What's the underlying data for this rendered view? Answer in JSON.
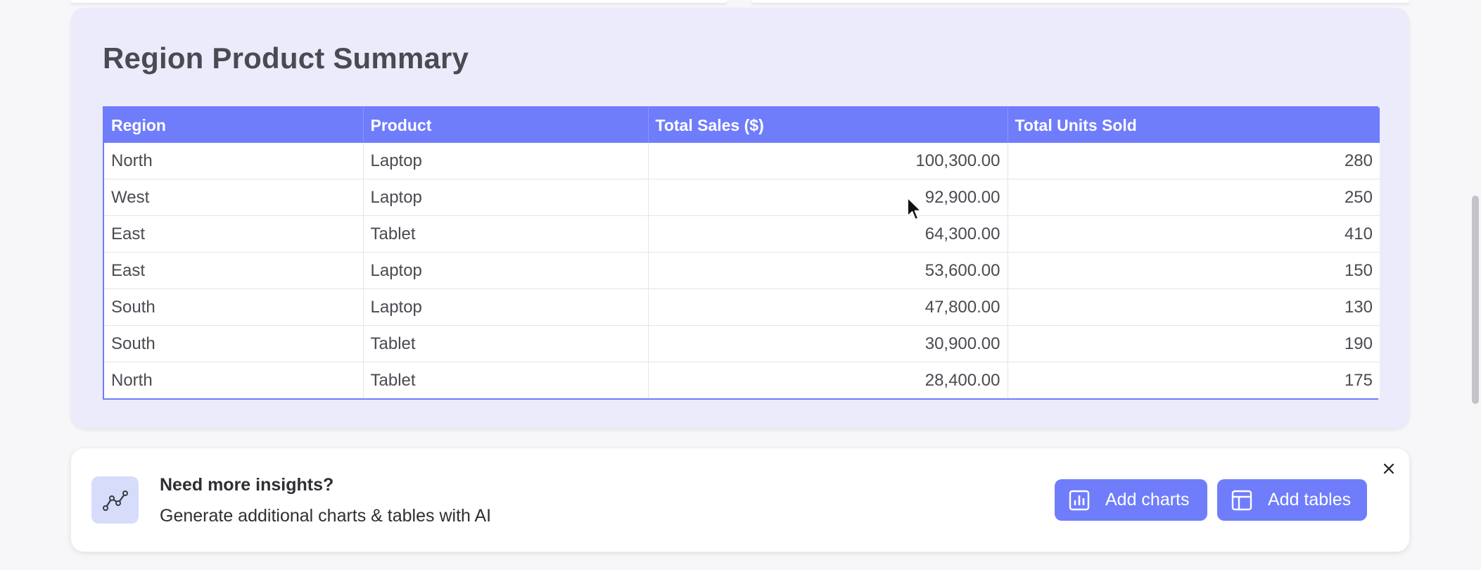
{
  "summary": {
    "title": "Region Product Summary",
    "columns": [
      "Region",
      "Product",
      "Total Sales ($)",
      "Total Units Sold"
    ],
    "rows": [
      {
        "region": "North",
        "product": "Laptop",
        "sales": "100,300.00",
        "units": "280"
      },
      {
        "region": "West",
        "product": "Laptop",
        "sales": "92,900.00",
        "units": "250"
      },
      {
        "region": "East",
        "product": "Tablet",
        "sales": "64,300.00",
        "units": "410"
      },
      {
        "region": "East",
        "product": "Laptop",
        "sales": "53,600.00",
        "units": "150"
      },
      {
        "region": "South",
        "product": "Laptop",
        "sales": "47,800.00",
        "units": "130"
      },
      {
        "region": "South",
        "product": "Tablet",
        "sales": "30,900.00",
        "units": "190"
      },
      {
        "region": "North",
        "product": "Tablet",
        "sales": "28,400.00",
        "units": "175"
      }
    ]
  },
  "insights": {
    "icon": "trend-line-icon",
    "title": "Need more insights?",
    "subtitle": "Generate additional charts & tables with AI",
    "add_charts_label": "Add charts",
    "add_charts_icon": "bar-chart-icon",
    "add_tables_label": "Add tables",
    "add_tables_icon": "table-icon",
    "close_icon": "close-icon"
  },
  "colors": {
    "accent": "#6f7dfb",
    "card_bg": "#ebebfc",
    "icon_box_bg": "#d7dcfb"
  }
}
